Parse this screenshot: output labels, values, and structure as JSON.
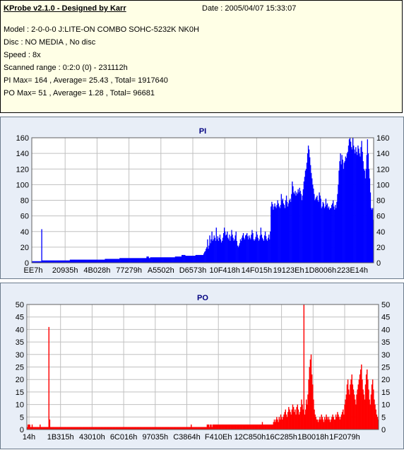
{
  "info": {
    "title": "KProbe v2.1.0 - Designed by Karr",
    "date": "Date : 2005/04/07 15:33:07",
    "lines": [
      "Model : 2-0-0-0 J:LITE-ON COMBO SOHC-5232K NK0H",
      "Disc : NO MEDIA , No disc",
      "Speed : 8x",
      "Scanned range : 0:2:0 (0) - 231112h",
      "PI Max= 164 , Average= 25.43 , Total= 1917640",
      "PO Max= 51 , Average= 1.28 , Total= 96681"
    ]
  },
  "chart_data": [
    {
      "type": "area",
      "title": "PI",
      "color": "#0000ff",
      "ylim": [
        0,
        160
      ],
      "yticks": [
        0,
        20,
        40,
        60,
        80,
        100,
        120,
        140,
        160
      ],
      "xtick_labels": [
        "EE7h",
        "20935h",
        "4B028h",
        "77279h",
        "A5502h",
        "D6573h",
        "10F418h",
        "14F015h",
        "19123Eh",
        "1D8006h",
        "223E14h"
      ],
      "grid": true,
      "series": [
        {
          "values": [
            2,
            2,
            2,
            2,
            2,
            2,
            2,
            2,
            2,
            2,
            2,
            2,
            2,
            43,
            3,
            3,
            3,
            3,
            3,
            3,
            3,
            3,
            3,
            3,
            3,
            3,
            3,
            3,
            3,
            3,
            3,
            3,
            3,
            3,
            3,
            3,
            3,
            3,
            3,
            3,
            3,
            3,
            3,
            3,
            3,
            3,
            3,
            3,
            3,
            3,
            3,
            3,
            4,
            4,
            4,
            4,
            4,
            4,
            4,
            4,
            4,
            4,
            4,
            4,
            4,
            4,
            4,
            4,
            4,
            4,
            4,
            4,
            4,
            4,
            4,
            4,
            4,
            4,
            4,
            4,
            4,
            4,
            4,
            4,
            4,
            4,
            4,
            4,
            4,
            4,
            4,
            4,
            4,
            4,
            4,
            4,
            4,
            4,
            4,
            4,
            5,
            5,
            5,
            5,
            5,
            5,
            5,
            5,
            5,
            5,
            5,
            5,
            5,
            5,
            5,
            5,
            5,
            5,
            5,
            5,
            6,
            6,
            6,
            6,
            6,
            6,
            6,
            6,
            6,
            6,
            6,
            6,
            6,
            6,
            6,
            6,
            6,
            6,
            6,
            6,
            6,
            6,
            6,
            6,
            6,
            6,
            6,
            6,
            6,
            6,
            6,
            6,
            6,
            6,
            6,
            6,
            6,
            8,
            8,
            8,
            6,
            6,
            7,
            7,
            7,
            7,
            7,
            7,
            7,
            7,
            7,
            7,
            7,
            7,
            7,
            7,
            7,
            7,
            7,
            7,
            7,
            7,
            7,
            7,
            7,
            7,
            7,
            7,
            7,
            7,
            7,
            7,
            7,
            7,
            7,
            7,
            8,
            8,
            8,
            8,
            8,
            8,
            8,
            8,
            8,
            10,
            10,
            10,
            10,
            10,
            9,
            9,
            9,
            9,
            9,
            9,
            9,
            9,
            9,
            9,
            9,
            9,
            9,
            9,
            10,
            10,
            10,
            10,
            10,
            10,
            10,
            10,
            10,
            10,
            10,
            12,
            14,
            15,
            18,
            20,
            30,
            18,
            22,
            35,
            25,
            30,
            40,
            28,
            30,
            35,
            32,
            28,
            45,
            30,
            34,
            28,
            32,
            36,
            30,
            26,
            28,
            32,
            38,
            45,
            40,
            35,
            36,
            40,
            32,
            30,
            36,
            28,
            34,
            42,
            36,
            32,
            28,
            30,
            35,
            40,
            28,
            22,
            20,
            22,
            25,
            30,
            28,
            32,
            35,
            38,
            32,
            30,
            35,
            36,
            38,
            34,
            30,
            35,
            32,
            30,
            36,
            42,
            38,
            30,
            28,
            30,
            33,
            40,
            36,
            32,
            28,
            30,
            35,
            45,
            36,
            32,
            30,
            28,
            35,
            40,
            34,
            30,
            28,
            32,
            36,
            30,
            40,
            72,
            78,
            75,
            68,
            72,
            76,
            72,
            70,
            74,
            80,
            76,
            72,
            70,
            74,
            88,
            80,
            82,
            76,
            74,
            70,
            80,
            86,
            78,
            72,
            76,
            80,
            82,
            78,
            88,
            104,
            98,
            90,
            88,
            92,
            86,
            90,
            88,
            94,
            90,
            96,
            92,
            88,
            80,
            86,
            94,
            104,
            110,
            118,
            120,
            128,
            140,
            150,
            145,
            135,
            125,
            115,
            108,
            100,
            95,
            88,
            80,
            82,
            84,
            86,
            80,
            78,
            90,
            86,
            82,
            70,
            72,
            78,
            76,
            70,
            72,
            82,
            74,
            76,
            70,
            72,
            68,
            70,
            70,
            74,
            76,
            80,
            72,
            68,
            74,
            70,
            78,
            88,
            100,
            118,
            130,
            140,
            126,
            138,
            132,
            120,
            128,
            130,
            136,
            134,
            140,
            142,
            150,
            158,
            164,
            155,
            148,
            145,
            160,
            150,
            145,
            140,
            148,
            142,
            138,
            150,
            146,
            140,
            136,
            148,
            156,
            142,
            130,
            120,
            118,
            108,
            120,
            138,
            158,
            140,
            120,
            108,
            90,
            70,
            68,
            70,
            55
          ]
        }
      ]
    },
    {
      "type": "area",
      "title": "PO",
      "color": "#ff0000",
      "ylim": [
        0,
        50
      ],
      "yticks": [
        0,
        5,
        10,
        15,
        20,
        25,
        30,
        35,
        40,
        45,
        50
      ],
      "xtick_labels": [
        "14h",
        "1B315h",
        "43010h",
        "6C016h",
        "97035h",
        "C3864h",
        "F410Eh",
        "12C850h",
        "16C285h",
        "1B0018h",
        "1F2079h"
      ],
      "grid": true,
      "series": [
        {
          "values": [
            1,
            2,
            2,
            2,
            1,
            1,
            2,
            1,
            1,
            1,
            1,
            1,
            1,
            1,
            1,
            1,
            2,
            1,
            1,
            1,
            1,
            1,
            1,
            1,
            1,
            1,
            1,
            41,
            4,
            1,
            1,
            1,
            1,
            1,
            1,
            1,
            1,
            1,
            1,
            1,
            1,
            1,
            1,
            1,
            1,
            1,
            1,
            1,
            1,
            1,
            1,
            1,
            1,
            1,
            1,
            1,
            1,
            1,
            1,
            1,
            1,
            1,
            1,
            1,
            1,
            1,
            1,
            1,
            1,
            1,
            1,
            1,
            1,
            1,
            1,
            1,
            1,
            1,
            1,
            1,
            1,
            1,
            1,
            1,
            1,
            1,
            1,
            1,
            1,
            1,
            1,
            1,
            1,
            1,
            1,
            1,
            1,
            1,
            1,
            1,
            1,
            1,
            1,
            1,
            1,
            1,
            1,
            1,
            1,
            1,
            1,
            1,
            1,
            1,
            1,
            1,
            1,
            1,
            1,
            1,
            1,
            1,
            1,
            1,
            1,
            1,
            1,
            1,
            1,
            1,
            1,
            1,
            1,
            1,
            1,
            1,
            1,
            1,
            1,
            1,
            1,
            1,
            1,
            1,
            1,
            1,
            1,
            1,
            1,
            1,
            1,
            1,
            1,
            1,
            1,
            1,
            1,
            1,
            1,
            1,
            1,
            1,
            1,
            1,
            1,
            1,
            1,
            1,
            1,
            1,
            1,
            1,
            1,
            1,
            1,
            1,
            1,
            1,
            1,
            1,
            1,
            1,
            1,
            1,
            1,
            1,
            1,
            1,
            1,
            1,
            1,
            1,
            1,
            1,
            1,
            1,
            1,
            1,
            1,
            1,
            1,
            1,
            1,
            1,
            1,
            2,
            1,
            1,
            1,
            1,
            1,
            1,
            1,
            1,
            1,
            1,
            1,
            1,
            1,
            1,
            1,
            1,
            1,
            1,
            1,
            2,
            2,
            2,
            1,
            2,
            2,
            1,
            2,
            2,
            2,
            2,
            2,
            2,
            2,
            2,
            2,
            2,
            2,
            2,
            2,
            2,
            2,
            2,
            2,
            2,
            2,
            2,
            2,
            2,
            2,
            2,
            2,
            2,
            2,
            2,
            2,
            2,
            2,
            2,
            2,
            2,
            2,
            2,
            2,
            2,
            2,
            2,
            2,
            2,
            2,
            2,
            2,
            2,
            2,
            2,
            2,
            2,
            2,
            2,
            2,
            2,
            2,
            2,
            2,
            2,
            2,
            2,
            2,
            2,
            3,
            2,
            2,
            2,
            2,
            2,
            2,
            2,
            2,
            2,
            2,
            2,
            2,
            2,
            3,
            4,
            3,
            4,
            5,
            4,
            3,
            5,
            4,
            6,
            5,
            4,
            5,
            6,
            7,
            8,
            6,
            5,
            7,
            9,
            8,
            7,
            6,
            8,
            10,
            9,
            7,
            8,
            6,
            9,
            10,
            8,
            6,
            7,
            9,
            12,
            10,
            8,
            51,
            6,
            8,
            12,
            10,
            14,
            20,
            25,
            28,
            30,
            22,
            18,
            12,
            8,
            6,
            5,
            4,
            4,
            3,
            4,
            5,
            4,
            6,
            5,
            4,
            3,
            5,
            4,
            6,
            5,
            4,
            5,
            4,
            3,
            4,
            5,
            6,
            5,
            4,
            4,
            6,
            5,
            7,
            6,
            5,
            4,
            5,
            6,
            7,
            8,
            6,
            10,
            12,
            14,
            18,
            20,
            16,
            14,
            18,
            20,
            22,
            18,
            16,
            14,
            12,
            10,
            14,
            16,
            18,
            20,
            22,
            24,
            26,
            20,
            16,
            14,
            12,
            18,
            22,
            24,
            20,
            16,
            12,
            10,
            14,
            18,
            20,
            16,
            12,
            10,
            8,
            6,
            5,
            4
          ]
        }
      ]
    }
  ]
}
